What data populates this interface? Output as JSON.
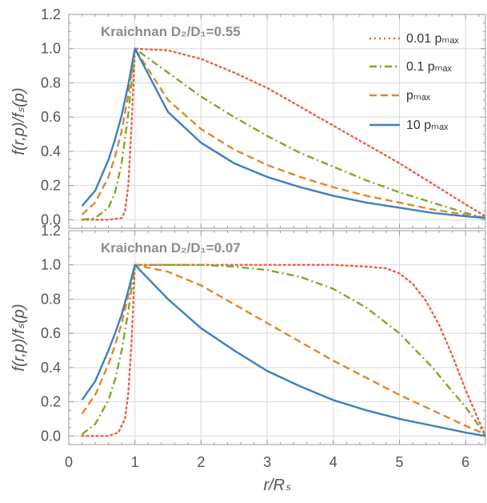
{
  "chart_data": [
    {
      "type": "line",
      "panel_label": "Kraichnan",
      "ratio_label": "D₂/D₁=0.55",
      "xlabel": "r/Rₛ",
      "ylabel": "f(r,p)/fₛ(p)",
      "xlim": [
        0,
        6.3
      ],
      "ylim": [
        -0.05,
        1.2
      ],
      "xticks": [
        "0",
        "1",
        "2",
        "3",
        "4",
        "5",
        "6"
      ],
      "yticks": [
        "0.0",
        "0.2",
        "0.4",
        "0.6",
        "0.8",
        "1.0",
        "1.2"
      ],
      "grid": true,
      "legend_position": "top-right",
      "legend": [
        "0.01 pₘₐₓ",
        "0.1 pₘₐₓ",
        "pₘₐₓ",
        "10 pₘₐₓ"
      ],
      "series": [
        {
          "name": "0.01 pmax",
          "color": "#e8624a",
          "dash": "dotted",
          "x": [
            0.2,
            0.6,
            0.8,
            0.85,
            0.9,
            0.95,
            1.0,
            1.5,
            2.0,
            2.5,
            3.0,
            3.5,
            4.0,
            4.5,
            5.0,
            5.5,
            6.0,
            6.3
          ],
          "y": [
            0.0,
            0.0,
            0.01,
            0.05,
            0.2,
            0.55,
            1.0,
            0.99,
            0.94,
            0.86,
            0.77,
            0.66,
            0.55,
            0.44,
            0.33,
            0.21,
            0.09,
            0.02
          ]
        },
        {
          "name": "0.1 pmax",
          "color": "#7fa82b",
          "dash": "dashdot",
          "x": [
            0.2,
            0.4,
            0.6,
            0.7,
            0.8,
            0.9,
            1.0,
            1.5,
            2.0,
            2.5,
            3.0,
            3.5,
            4.0,
            4.5,
            5.0,
            5.5,
            6.0,
            6.3
          ],
          "y": [
            0.0,
            0.01,
            0.07,
            0.16,
            0.33,
            0.62,
            1.0,
            0.86,
            0.72,
            0.6,
            0.49,
            0.39,
            0.31,
            0.23,
            0.16,
            0.1,
            0.04,
            0.01
          ]
        },
        {
          "name": "pmax",
          "color": "#e0882c",
          "dash": "dashed",
          "x": [
            0.2,
            0.4,
            0.6,
            0.7,
            0.8,
            0.9,
            1.0,
            1.5,
            2.0,
            2.5,
            3.0,
            3.5,
            4.0,
            4.5,
            5.0,
            5.5,
            6.0,
            6.3
          ],
          "y": [
            0.03,
            0.1,
            0.25,
            0.37,
            0.52,
            0.73,
            1.0,
            0.7,
            0.53,
            0.41,
            0.32,
            0.25,
            0.19,
            0.14,
            0.1,
            0.06,
            0.03,
            0.01
          ]
        },
        {
          "name": "10 pmax",
          "color": "#3d7fc1",
          "dash": "solid",
          "x": [
            0.2,
            0.4,
            0.6,
            0.7,
            0.8,
            0.9,
            1.0,
            1.5,
            2.0,
            2.5,
            3.0,
            3.5,
            4.0,
            4.5,
            5.0,
            5.5,
            6.0,
            6.3
          ],
          "y": [
            0.08,
            0.17,
            0.35,
            0.47,
            0.61,
            0.79,
            1.0,
            0.63,
            0.45,
            0.33,
            0.25,
            0.19,
            0.14,
            0.1,
            0.07,
            0.04,
            0.02,
            0.01
          ]
        }
      ]
    },
    {
      "type": "line",
      "panel_label": "Kraichnan",
      "ratio_label": "D₂/D₁=0.07",
      "xlabel": "r/Rₛ",
      "ylabel": "f(r,p)/fₛ(p)",
      "xlim": [
        0,
        6.3
      ],
      "ylim": [
        -0.05,
        1.2
      ],
      "xticks": [
        "0",
        "1",
        "2",
        "3",
        "4",
        "5",
        "6"
      ],
      "yticks": [
        "0.0",
        "0.2",
        "0.4",
        "0.6",
        "0.8",
        "1.0",
        "1.2"
      ],
      "grid": true,
      "series": [
        {
          "name": "0.01 pmax",
          "color": "#e8624a",
          "dash": "dotted",
          "x": [
            0.2,
            0.6,
            0.75,
            0.85,
            0.9,
            0.95,
            1.0,
            2.0,
            3.0,
            4.0,
            4.5,
            4.8,
            5.0,
            5.2,
            5.4,
            5.6,
            5.8,
            6.0,
            6.1,
            6.2,
            6.3
          ],
          "y": [
            0.0,
            0.0,
            0.02,
            0.1,
            0.25,
            0.55,
            1.0,
            1.0,
            1.0,
            1.0,
            0.99,
            0.98,
            0.95,
            0.89,
            0.79,
            0.65,
            0.47,
            0.27,
            0.18,
            0.09,
            0.0
          ]
        },
        {
          "name": "0.1 pmax",
          "color": "#7fa82b",
          "dash": "dashdot",
          "x": [
            0.2,
            0.4,
            0.6,
            0.7,
            0.8,
            0.9,
            1.0,
            2.0,
            2.5,
            3.0,
            3.5,
            4.0,
            4.5,
            5.0,
            5.5,
            5.8,
            6.0,
            6.2,
            6.3
          ],
          "y": [
            0.01,
            0.07,
            0.21,
            0.33,
            0.5,
            0.73,
            1.0,
            1.0,
            0.99,
            0.97,
            0.93,
            0.86,
            0.75,
            0.6,
            0.4,
            0.26,
            0.17,
            0.06,
            0.0
          ]
        },
        {
          "name": "pmax",
          "color": "#e0882c",
          "dash": "dashed",
          "x": [
            0.2,
            0.4,
            0.6,
            0.7,
            0.8,
            0.9,
            1.0,
            1.5,
            2.0,
            2.5,
            3.0,
            3.5,
            4.0,
            4.5,
            5.0,
            5.5,
            6.0,
            6.3
          ],
          "y": [
            0.13,
            0.24,
            0.42,
            0.53,
            0.66,
            0.82,
            1.0,
            0.96,
            0.88,
            0.77,
            0.66,
            0.55,
            0.44,
            0.34,
            0.24,
            0.15,
            0.06,
            0.01
          ]
        },
        {
          "name": "10 pmax",
          "color": "#3d7fc1",
          "dash": "solid",
          "x": [
            0.2,
            0.4,
            0.6,
            0.7,
            0.8,
            0.9,
            1.0,
            1.5,
            2.0,
            2.5,
            3.0,
            3.5,
            4.0,
            4.5,
            5.0,
            5.5,
            6.0,
            6.3
          ],
          "y": [
            0.21,
            0.32,
            0.5,
            0.6,
            0.71,
            0.85,
            1.0,
            0.8,
            0.63,
            0.5,
            0.38,
            0.29,
            0.21,
            0.15,
            0.1,
            0.06,
            0.02,
            0.0
          ]
        }
      ]
    }
  ]
}
